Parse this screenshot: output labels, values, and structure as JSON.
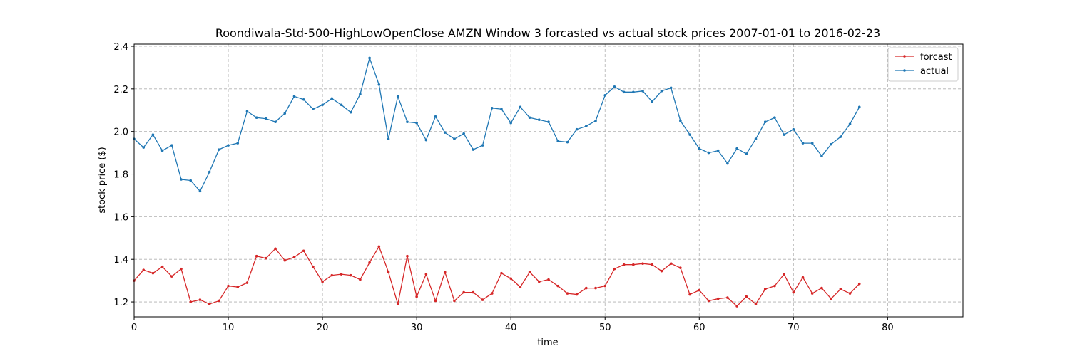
{
  "chart_data": {
    "type": "line",
    "title": "Roondiwala-Std-500-HighLowOpenClose AMZN Window 3 forcasted vs actual stock prices 2007-01-01 to 2016-02-23",
    "xlabel": "time",
    "ylabel": "stock price ($)",
    "xlim": [
      0,
      88
    ],
    "ylim": [
      1.13,
      2.41
    ],
    "xticks": [
      0,
      10,
      20,
      30,
      40,
      50,
      60,
      70,
      80
    ],
    "yticks": [
      1.2,
      1.4,
      1.6,
      1.8,
      2.0,
      2.2,
      2.4
    ],
    "xtick_labels": [
      "0",
      "10",
      "20",
      "30",
      "40",
      "50",
      "60",
      "70",
      "80"
    ],
    "ytick_labels": [
      "1.2",
      "1.4",
      "1.6",
      "1.8",
      "2.0",
      "2.2",
      "2.4"
    ],
    "grid": true,
    "legend_position": "top-right",
    "series": [
      {
        "name": "forcast",
        "color": "#d62728",
        "values": [
          1.3,
          1.35,
          1.335,
          1.365,
          1.32,
          1.355,
          1.2,
          1.21,
          1.19,
          1.205,
          1.275,
          1.27,
          1.29,
          1.415,
          1.405,
          1.45,
          1.395,
          1.41,
          1.44,
          1.365,
          1.295,
          1.325,
          1.33,
          1.325,
          1.305,
          1.385,
          1.46,
          1.34,
          1.19,
          1.415,
          1.225,
          1.33,
          1.205,
          1.34,
          1.205,
          1.245,
          1.245,
          1.21,
          1.24,
          1.335,
          1.31,
          1.27,
          1.34,
          1.295,
          1.305,
          1.275,
          1.24,
          1.235,
          1.265,
          1.265,
          1.275,
          1.355,
          1.375,
          1.375,
          1.38,
          1.375,
          1.345,
          1.38,
          1.36,
          1.235,
          1.255,
          1.205,
          1.215,
          1.22,
          1.18,
          1.225,
          1.19,
          1.26,
          1.275,
          1.33,
          1.245,
          1.315,
          1.24,
          1.265,
          1.215,
          1.26,
          1.24,
          1.285
        ]
      },
      {
        "name": "actual",
        "color": "#1f77b4",
        "values": [
          1.965,
          1.925,
          1.985,
          1.91,
          1.935,
          1.775,
          1.77,
          1.72,
          1.81,
          1.915,
          1.935,
          1.945,
          2.095,
          2.065,
          2.06,
          2.045,
          2.085,
          2.165,
          2.15,
          2.105,
          2.125,
          2.155,
          2.125,
          2.09,
          2.175,
          2.345,
          2.22,
          1.965,
          2.165,
          2.045,
          2.04,
          1.96,
          2.07,
          1.995,
          1.965,
          1.99,
          1.915,
          1.935,
          2.11,
          2.105,
          2.04,
          2.115,
          2.065,
          2.055,
          2.045,
          1.955,
          1.95,
          2.01,
          2.025,
          2.05,
          2.17,
          2.21,
          2.185,
          2.185,
          2.19,
          2.14,
          2.19,
          2.205,
          2.05,
          1.985,
          1.92,
          1.9,
          1.91,
          1.85,
          1.92,
          1.895,
          1.965,
          2.045,
          2.065,
          1.985,
          2.01,
          1.945,
          1.945,
          1.885,
          1.94,
          1.975,
          2.035,
          2.115
        ]
      }
    ]
  }
}
